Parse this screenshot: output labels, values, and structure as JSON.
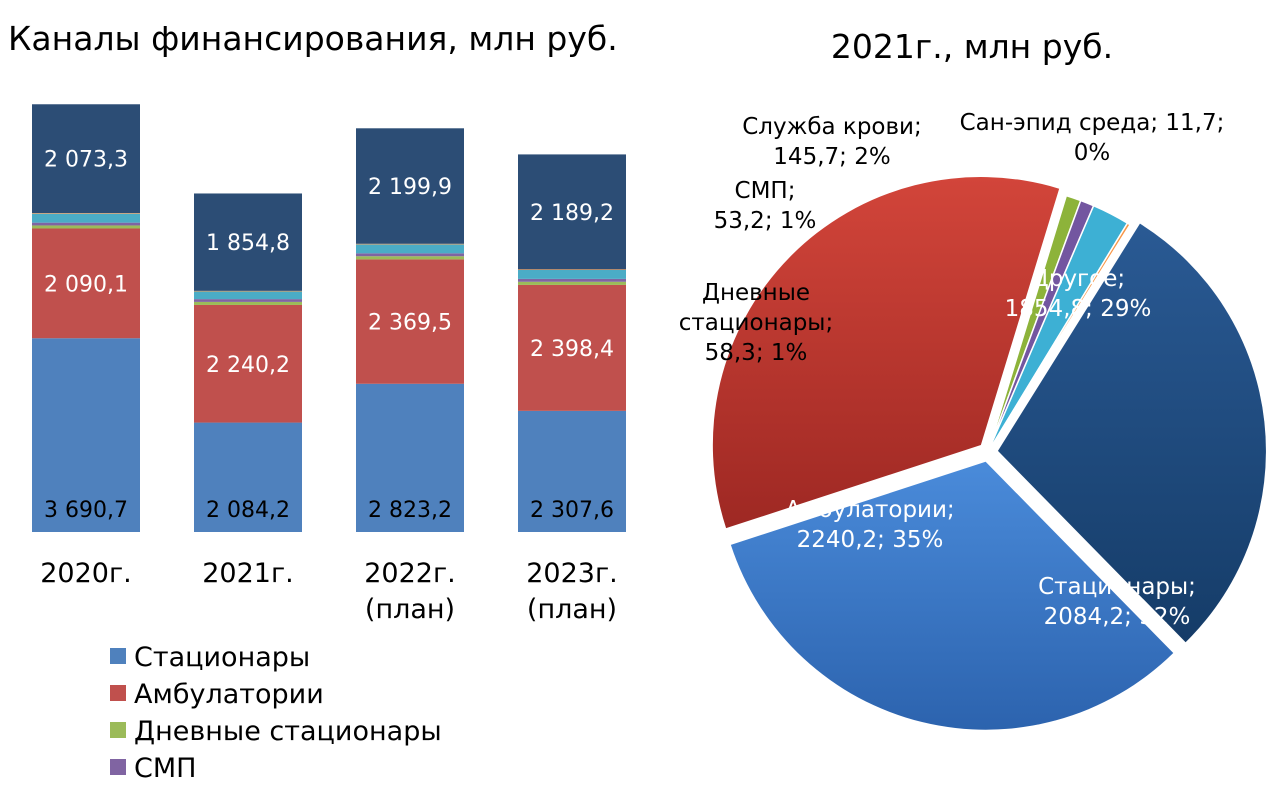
{
  "chart_data": [
    {
      "type": "bar",
      "stacked": true,
      "title": "Каналы финансирования, млн руб.",
      "categories": [
        "2020г.",
        "2021г.",
        "2022г. (план)",
        "2023г. (план)"
      ],
      "category_lines": [
        [
          "2020г."
        ],
        [
          "2021г."
        ],
        [
          "2022г.",
          "(план)"
        ],
        [
          "2023г.",
          "(план)"
        ]
      ],
      "series": [
        {
          "name": "Стационары",
          "color": "#4F81BD",
          "values": [
            3690.7,
            2084.2,
            2823.2,
            2307.6
          ],
          "labels": [
            "3 690,7",
            "2 084,2",
            "2 823,2",
            "2 307,6"
          ],
          "label_color": "#000000",
          "label_pos": "bottom"
        },
        {
          "name": "Амбулатории",
          "color": "#C0504D",
          "values": [
            2090.1,
            2240.2,
            2369.5,
            2398.4
          ],
          "labels": [
            "2 090,1",
            "2 240,2",
            "2 369,5",
            "2 398,4"
          ],
          "label_color": "#ffffff",
          "label_pos": "center"
        },
        {
          "name": "Дневные стационары",
          "color": "#9BBB59",
          "values": [
            58.3,
            58.3,
            60,
            60
          ]
        },
        {
          "name": "СМП",
          "color": "#8064A2",
          "values": [
            53.2,
            53.2,
            55,
            55
          ]
        },
        {
          "name": "Служба крови",
          "color": "#4BACC6",
          "values": [
            170,
            145.7,
            170,
            170
          ]
        },
        {
          "name": "Сан-эпид среда",
          "color": "#F79646",
          "values": [
            11.7,
            11.7,
            12,
            12
          ]
        },
        {
          "name": "Другое",
          "color": "#2C4D75",
          "values": [
            2073.3,
            1854.8,
            2199.9,
            2189.2
          ],
          "labels": [
            "2 073,3",
            "1 854,8",
            "2 199,9",
            "2 189,2"
          ],
          "label_color": "#ffffff",
          "label_pos": "center"
        }
      ],
      "legend": {
        "placement": "bottom-left",
        "visible_entries": [
          "Стационары",
          "Амбулатории",
          "Дневные стационары",
          "СМП"
        ]
      }
    },
    {
      "type": "pie",
      "title": "2021г., млн руб.",
      "slices": [
        {
          "name": "Другое",
          "value": 1854.8,
          "percent": 29,
          "color": "#1F497D",
          "label_lines": [
            "Другое;",
            "1854,8; 29%"
          ],
          "label_color": "#ffffff",
          "exploded": true
        },
        {
          "name": "Стационары",
          "value": 2084.2,
          "percent": 32,
          "color": "#3A78C8",
          "label_lines": [
            "Стационары;",
            "2084,2; 32%"
          ],
          "label_color": "#ffffff",
          "exploded": true
        },
        {
          "name": "Амбулатории",
          "value": 2240.2,
          "percent": 35,
          "color": "#C0392B",
          "label_lines": [
            "Амбулатории;",
            "2240,2; 35%"
          ],
          "label_color": "#ffffff",
          "exploded": true
        },
        {
          "name": "Дневные стационары",
          "value": 58.3,
          "percent": 1,
          "color": "#8DB33A",
          "label_lines": [
            "Дневные",
            "стационары;",
            "58,3; 1%"
          ],
          "label_color": "#000000",
          "exploded": false
        },
        {
          "name": "СМП",
          "value": 53.2,
          "percent": 1,
          "color": "#7356A0",
          "label_lines": [
            "СМП;",
            "53,2; 1%"
          ],
          "label_color": "#000000",
          "exploded": false
        },
        {
          "name": "Служба крови",
          "value": 145.7,
          "percent": 2,
          "color": "#3DB0D4",
          "label_lines": [
            "Служба крови;",
            "145,7; 2%"
          ],
          "label_color": "#000000",
          "exploded": false
        },
        {
          "name": "Сан-эпид среда",
          "value": 11.7,
          "percent": 0,
          "color": "#F79646",
          "label_lines": [
            "Сан-эпид среда; 11,7;",
            "0%"
          ],
          "label_color": "#000000",
          "exploded": false
        }
      ]
    }
  ]
}
